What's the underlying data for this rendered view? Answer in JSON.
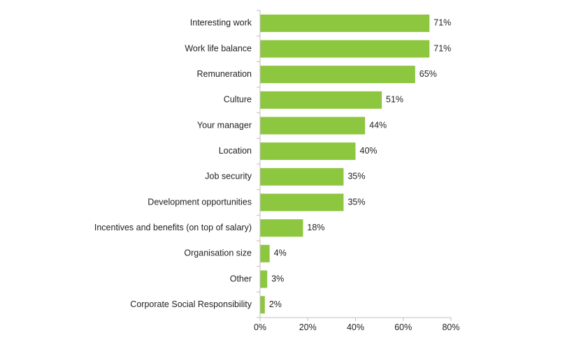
{
  "chart_data": {
    "type": "bar",
    "orientation": "horizontal",
    "categories": [
      "Interesting work",
      "Work life balance",
      "Remuneration",
      "Culture",
      "Your manager",
      "Location",
      "Job security",
      "Development opportunities",
      "Incentives and benefits (on top of salary)",
      "Organisation size",
      "Other",
      "Corporate Social Responsibility"
    ],
    "values": [
      71,
      71,
      65,
      51,
      44,
      40,
      35,
      35,
      18,
      4,
      3,
      2
    ],
    "value_labels": [
      "71%",
      "71%",
      "65%",
      "51%",
      "44%",
      "40%",
      "35%",
      "35%",
      "18%",
      "4%",
      "3%",
      "2%"
    ],
    "xlim": [
      0,
      80
    ],
    "xticks": [
      0,
      20,
      40,
      60,
      80
    ],
    "xtick_labels": [
      "0%",
      "20%",
      "40%",
      "60%",
      "80%"
    ],
    "title": "",
    "xlabel": "",
    "ylabel": "",
    "grid": false,
    "legend": "none",
    "colors": {
      "bar": "#8dc63f",
      "axis": "#bfbfbf",
      "text": "#222222"
    }
  }
}
